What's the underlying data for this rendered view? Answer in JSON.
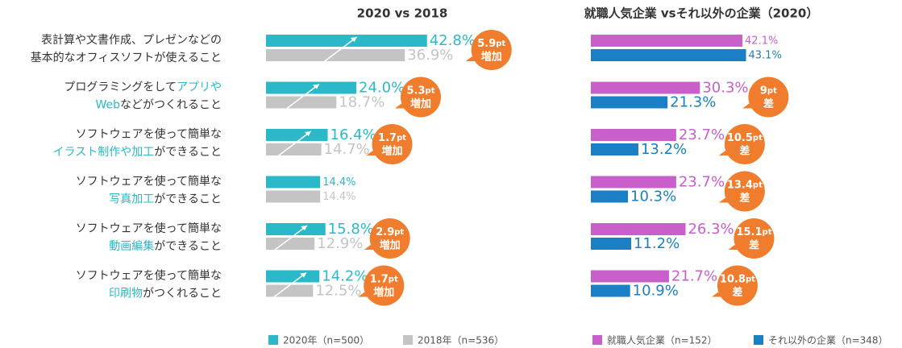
{
  "categories": [
    [
      [
        {
          "text": "表計算や文書作成、プレゼンなどの"
        }
      ],
      [
        {
          "text": "基本的なオフィスソフトが使えること"
        }
      ]
    ],
    [
      [
        {
          "text": "プログラミングをして"
        },
        {
          "text": "アプリや",
          "em": true
        }
      ],
      [
        {
          "text": "Web",
          "em": true
        },
        {
          "text": "などがつくれること"
        }
      ]
    ],
    [
      [
        {
          "text": "ソフトウェアを使って簡単な"
        }
      ],
      [
        {
          "text": "イラスト制作や加工",
          "em": true
        },
        {
          "text": "ができること"
        }
      ]
    ],
    [
      [
        {
          "text": "ソフトウェアを使って簡単な"
        }
      ],
      [
        {
          "text": "写真加工",
          "em": true
        },
        {
          "text": "ができること"
        }
      ]
    ],
    [
      [
        {
          "text": "ソフトウェアを使って簡単な"
        }
      ],
      [
        {
          "text": "動画編集",
          "em": true
        },
        {
          "text": "ができること"
        }
      ]
    ],
    [
      [
        {
          "text": "ソフトウェアを使って簡単な"
        }
      ],
      [
        {
          "text": "印刷物",
          "em": true
        },
        {
          "text": "がつくれること"
        }
      ]
    ]
  ],
  "chart_data": [
    {
      "type": "bar",
      "title": "2020 vs 2018",
      "xlim": [
        0,
        60
      ],
      "series": [
        {
          "name": "2020年（n=500）",
          "color": "#2bb8c8",
          "values": [
            42.8,
            24.0,
            16.4,
            14.4,
            15.8,
            14.2
          ],
          "value_labels": [
            "42.8%",
            "24.0%",
            "16.4%",
            "14.4%",
            "15.8%",
            "14.2%"
          ]
        },
        {
          "name": "2018年（n=536）",
          "color": "#c4c4c4",
          "values": [
            36.9,
            18.7,
            14.7,
            14.4,
            12.9,
            12.5
          ],
          "value_labels": [
            "36.9%",
            "18.7%",
            "14.7%",
            "14.4%",
            "12.9%",
            "12.5%"
          ]
        }
      ],
      "annotations": [
        {
          "value": 5.9,
          "unit": "pt",
          "label": "増加"
        },
        {
          "value": 5.3,
          "unit": "pt",
          "label": "増加"
        },
        {
          "value": 1.7,
          "unit": "pt",
          "label": "増加"
        },
        null,
        {
          "value": 2.9,
          "unit": "pt",
          "label": "増加"
        },
        {
          "value": 1.7,
          "unit": "pt",
          "label": "増加"
        }
      ]
    },
    {
      "type": "bar",
      "title": "就職人気企業 vsそれ以外の企業（2020）",
      "xlim": [
        0,
        60
      ],
      "series": [
        {
          "name": "就職人気企業（n=152）",
          "color": "#c95fcb",
          "values": [
            42.1,
            30.3,
            23.7,
            23.7,
            26.3,
            21.7
          ],
          "value_labels": [
            "42.1%",
            "30.3%",
            "23.7%",
            "23.7%",
            "26.3%",
            "21.7%"
          ]
        },
        {
          "name": "それ以外の企業（n=348）",
          "color": "#1a7fc4",
          "values": [
            43.1,
            21.3,
            13.2,
            10.3,
            11.2,
            10.9
          ],
          "value_labels": [
            "43.1%",
            "21.3%",
            "13.2%",
            "10.3%",
            "11.2%",
            "10.9%"
          ]
        }
      ],
      "annotations": [
        null,
        {
          "value": 9,
          "unit": "pt",
          "label": "差"
        },
        {
          "value": 10.5,
          "unit": "pt",
          "label": "差"
        },
        {
          "value": 13.4,
          "unit": "pt",
          "label": "差"
        },
        {
          "value": 15.1,
          "unit": "pt",
          "label": "差"
        },
        {
          "value": 10.8,
          "unit": "pt",
          "label": "差"
        }
      ]
    }
  ]
}
